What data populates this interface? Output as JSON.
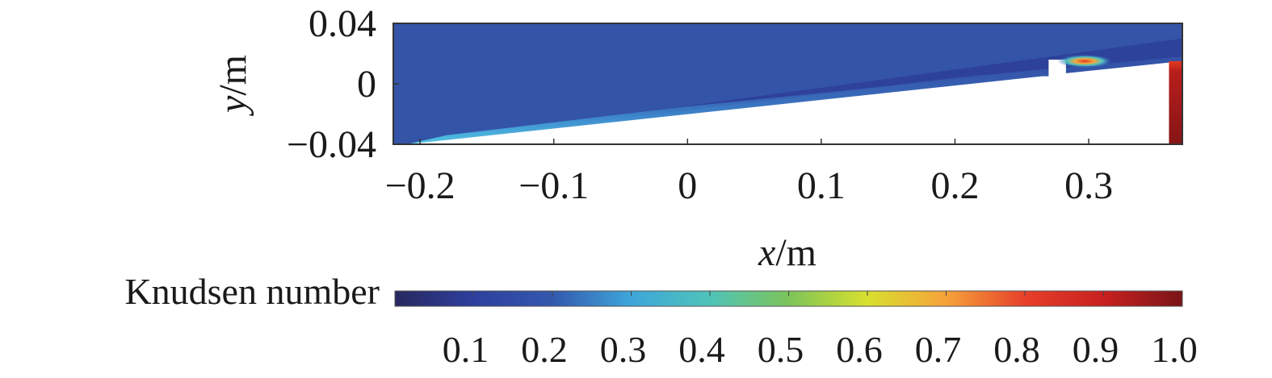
{
  "chart_data": {
    "type": "heatmap",
    "xlabel": {
      "var": "x",
      "unit": "/m"
    },
    "ylabel": {
      "var": "y",
      "unit": "/m"
    },
    "xlim": [
      -0.22,
      0.37
    ],
    "ylim": [
      -0.04,
      0.04
    ],
    "x_ticks": [
      -0.2,
      -0.1,
      0,
      0.1,
      0.2,
      0.3
    ],
    "x_tick_labels": [
      "−0.2",
      "−0.1",
      "0",
      "0.1",
      "0.2",
      "0.3"
    ],
    "y_ticks": [
      0.04,
      0,
      -0.04
    ],
    "y_tick_labels": [
      "0.04",
      "0",
      "−0.04"
    ],
    "colorbar": {
      "label": "Knudsen number",
      "range": [
        0,
        1.0
      ],
      "ticks": [
        0.1,
        0.2,
        0.3,
        0.4,
        0.5,
        0.6,
        0.7,
        0.8,
        0.9,
        1.0
      ],
      "tick_labels": [
        "0.1",
        "0.2",
        "0.3",
        "0.4",
        "0.5",
        "0.6",
        "0.7",
        "0.8",
        "0.9",
        "1.0"
      ],
      "colormap": [
        "#28285e",
        "#2d3f9e",
        "#3458ad",
        "#3ea6da",
        "#4fc3b8",
        "#7cc45a",
        "#d8e02e",
        "#f6a23a",
        "#e6402a",
        "#c8201f",
        "#7a1518"
      ]
    },
    "field": {
      "background_value": 0.15,
      "geometry": {
        "lower_surface": [
          [
            -0.21,
            -0.04
          ],
          [
            0.265,
            0.005
          ]
        ],
        "step_gap_x": [
          0.27,
          0.283
        ],
        "aft_lower_surface": [
          [
            0.283,
            0.007
          ],
          [
            0.37,
            0.015
          ]
        ],
        "upper_boundary": [
          [
            -0.22,
            0.04
          ],
          [
            0.37,
            0.04
          ]
        ]
      },
      "features": [
        {
          "kind": "boundary-layer",
          "along": "lower_surface",
          "value": 0.3
        },
        {
          "kind": "shock-layer",
          "from": [
            -0.21,
            -0.04
          ],
          "to": [
            0.37,
            0.03
          ],
          "value": 0.12
        },
        {
          "kind": "hot-spot",
          "at": [
            0.297,
            0.015
          ],
          "value": 0.85
        },
        {
          "kind": "wall-region",
          "x": [
            0.36,
            0.37
          ],
          "y": [
            -0.04,
            0.015
          ],
          "value": 1.0
        }
      ]
    }
  }
}
